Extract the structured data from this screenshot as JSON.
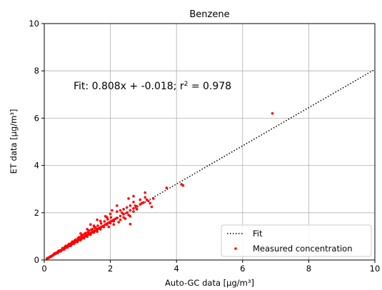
{
  "chart_data": {
    "type": "scatter",
    "title": "Benzene",
    "xlabel": "Auto-GC data [μg/m³]",
    "ylabel": "ET data [μg/m³]",
    "xlim": [
      0,
      10
    ],
    "ylim": [
      0,
      10
    ],
    "xticks": [
      0,
      2,
      4,
      6,
      8,
      10
    ],
    "yticks": [
      0,
      2,
      4,
      6,
      8,
      10
    ],
    "grid": true,
    "legend_position": "lower-right",
    "annotation": {
      "text": "Fit: 0.808x + -0.018; r² = 0.978",
      "prefix": "Fit: 0.808x + -0.018; r",
      "sup": "2",
      "suffix": " = 0.978"
    },
    "colors": {
      "points": "#ff0000",
      "fit": "#000000",
      "grid": "#b0b0b0"
    },
    "fit": {
      "name": "Fit",
      "slope": 0.808,
      "intercept": -0.018,
      "style": "dotted",
      "x_range": [
        0.05,
        10
      ]
    },
    "series": [
      {
        "name": "Measured concentration",
        "points": [
          [
            0.08,
            0.06
          ],
          [
            0.1,
            0.07
          ],
          [
            0.12,
            0.09
          ],
          [
            0.14,
            0.1
          ],
          [
            0.15,
            0.11
          ],
          [
            0.17,
            0.12
          ],
          [
            0.19,
            0.15
          ],
          [
            0.2,
            0.14
          ],
          [
            0.22,
            0.17
          ],
          [
            0.24,
            0.18
          ],
          [
            0.25,
            0.2
          ],
          [
            0.27,
            0.21
          ],
          [
            0.28,
            0.22
          ],
          [
            0.3,
            0.23
          ],
          [
            0.32,
            0.25
          ],
          [
            0.33,
            0.27
          ],
          [
            0.35,
            0.28
          ],
          [
            0.37,
            0.29
          ],
          [
            0.38,
            0.31
          ],
          [
            0.4,
            0.32
          ],
          [
            0.42,
            0.33
          ],
          [
            0.43,
            0.35
          ],
          [
            0.45,
            0.36
          ],
          [
            0.47,
            0.38
          ],
          [
            0.48,
            0.39
          ],
          [
            0.5,
            0.4
          ],
          [
            0.52,
            0.41
          ],
          [
            0.53,
            0.43
          ],
          [
            0.55,
            0.44
          ],
          [
            0.57,
            0.46
          ],
          [
            0.58,
            0.47
          ],
          [
            0.6,
            0.48
          ],
          [
            0.62,
            0.5
          ],
          [
            0.63,
            0.51
          ],
          [
            0.65,
            0.52
          ],
          [
            0.67,
            0.54
          ],
          [
            0.68,
            0.55
          ],
          [
            0.7,
            0.57
          ],
          [
            0.72,
            0.58
          ],
          [
            0.73,
            0.59
          ],
          [
            0.75,
            0.6
          ],
          [
            0.77,
            0.62
          ],
          [
            0.78,
            0.63
          ],
          [
            0.8,
            0.65
          ],
          [
            0.82,
            0.66
          ],
          [
            0.83,
            0.67
          ],
          [
            0.85,
            0.69
          ],
          [
            0.87,
            0.7
          ],
          [
            0.88,
            0.71
          ],
          [
            0.9,
            0.73
          ],
          [
            0.92,
            0.74
          ],
          [
            0.93,
            0.76
          ],
          [
            0.95,
            0.77
          ],
          [
            0.97,
            0.78
          ],
          [
            0.98,
            0.8
          ],
          [
            1.0,
            0.81
          ],
          [
            1.02,
            0.82
          ],
          [
            1.03,
            0.84
          ],
          [
            1.05,
            0.85
          ],
          [
            1.07,
            0.86
          ],
          [
            1.08,
            0.88
          ],
          [
            1.1,
            0.89
          ],
          [
            1.12,
            0.9
          ],
          [
            1.13,
            0.92
          ],
          [
            1.15,
            0.93
          ],
          [
            1.17,
            0.95
          ],
          [
            1.18,
            0.96
          ],
          [
            1.2,
            0.97
          ],
          [
            1.22,
            0.99
          ],
          [
            1.23,
            1.0
          ],
          [
            1.25,
            1.01
          ],
          [
            1.27,
            1.03
          ],
          [
            1.28,
            1.04
          ],
          [
            1.3,
            1.05
          ],
          [
            1.32,
            1.07
          ],
          [
            1.33,
            1.08
          ],
          [
            1.35,
            1.1
          ],
          [
            1.37,
            1.11
          ],
          [
            1.38,
            1.12
          ],
          [
            1.4,
            1.13
          ],
          [
            1.42,
            1.15
          ],
          [
            1.43,
            1.16
          ],
          [
            1.45,
            1.17
          ],
          [
            1.47,
            1.19
          ],
          [
            1.5,
            1.21
          ],
          [
            1.52,
            1.23
          ],
          [
            1.55,
            1.25
          ],
          [
            1.58,
            1.27
          ],
          [
            1.6,
            1.3
          ],
          [
            1.62,
            1.31
          ],
          [
            1.65,
            1.33
          ],
          [
            1.68,
            1.36
          ],
          [
            1.7,
            1.37
          ],
          [
            1.73,
            1.4
          ],
          [
            1.77,
            1.43
          ],
          [
            1.8,
            1.45
          ],
          [
            1.85,
            1.5
          ],
          [
            1.9,
            1.54
          ],
          [
            1.95,
            1.58
          ],
          [
            2.0,
            1.62
          ],
          [
            2.05,
            1.66
          ],
          [
            2.1,
            1.7
          ],
          [
            2.15,
            1.74
          ],
          [
            2.2,
            1.78
          ],
          [
            2.3,
            1.86
          ],
          [
            2.4,
            1.94
          ],
          [
            2.5,
            2.0
          ],
          [
            2.6,
            2.1
          ],
          [
            2.7,
            2.18
          ],
          [
            2.8,
            2.27
          ],
          [
            2.9,
            2.35
          ],
          [
            3.0,
            2.43
          ],
          [
            0.4,
            0.29
          ],
          [
            0.5,
            0.37
          ],
          [
            0.6,
            0.45
          ],
          [
            0.7,
            0.53
          ],
          [
            0.8,
            0.6
          ],
          [
            0.9,
            0.69
          ],
          [
            1.0,
            0.76
          ],
          [
            1.1,
            0.84
          ],
          [
            1.2,
            0.92
          ],
          [
            1.3,
            0.99
          ],
          [
            1.4,
            1.07
          ],
          [
            1.5,
            1.16
          ],
          [
            0.45,
            0.4
          ],
          [
            0.55,
            0.5
          ],
          [
            0.65,
            0.6
          ],
          [
            0.75,
            0.68
          ],
          [
            0.85,
            0.78
          ],
          [
            0.95,
            0.86
          ],
          [
            1.05,
            0.96
          ],
          [
            1.15,
            1.06
          ],
          [
            1.25,
            1.14
          ],
          [
            1.35,
            1.24
          ],
          [
            1.45,
            1.3
          ],
          [
            1.55,
            1.38
          ],
          [
            0.3,
            0.27
          ],
          [
            0.35,
            0.3
          ],
          [
            0.42,
            0.37
          ],
          [
            0.62,
            0.55
          ],
          [
            0.72,
            0.63
          ],
          [
            0.82,
            0.72
          ],
          [
            0.92,
            0.82
          ],
          [
            1.02,
            0.92
          ],
          [
            1.12,
            1.01
          ],
          [
            1.22,
            1.1
          ],
          [
            1.32,
            1.18
          ],
          [
            1.42,
            1.28
          ],
          [
            1.52,
            1.36
          ],
          [
            1.62,
            1.45
          ],
          [
            1.72,
            1.55
          ],
          [
            1.82,
            1.63
          ],
          [
            1.92,
            1.72
          ],
          [
            2.02,
            1.8
          ],
          [
            1.6,
            1.2
          ],
          [
            1.7,
            1.3
          ],
          [
            1.8,
            1.4
          ],
          [
            1.9,
            1.5
          ],
          [
            2.0,
            1.56
          ],
          [
            2.1,
            1.64
          ],
          [
            1.7,
            1.65
          ],
          [
            1.9,
            1.8
          ],
          [
            2.0,
            1.95
          ],
          [
            2.2,
            2.05
          ],
          [
            2.3,
            2.1
          ],
          [
            2.4,
            2.15
          ],
          [
            2.5,
            2.22
          ],
          [
            2.6,
            2.3
          ],
          [
            2.7,
            2.45
          ],
          [
            2.9,
            2.55
          ],
          [
            3.05,
            2.65
          ],
          [
            3.15,
            2.5
          ],
          [
            3.2,
            2.4
          ],
          [
            2.3,
            1.7
          ],
          [
            2.4,
            1.8
          ],
          [
            2.55,
            1.9
          ],
          [
            2.7,
            2.05
          ],
          [
            2.8,
            2.15
          ],
          [
            1.4,
            1.5
          ],
          [
            1.6,
            1.7
          ],
          [
            2.2,
            2.3
          ],
          [
            2.35,
            2.0
          ],
          [
            2.55,
            2.6
          ],
          [
            2.7,
            2.7
          ],
          [
            1.95,
            1.4
          ],
          [
            2.1,
            1.5
          ],
          [
            2.25,
            1.6
          ],
          [
            2.45,
            1.75
          ],
          [
            2.6,
            1.85
          ],
          [
            1.1,
            1.12
          ],
          [
            1.3,
            1.3
          ],
          [
            1.5,
            1.45
          ],
          [
            1.85,
            1.85
          ],
          [
            2.05,
            2.1
          ],
          [
            2.75,
            2.3
          ],
          [
            2.95,
            2.4
          ],
          [
            3.1,
            2.55
          ],
          [
            3.25,
            2.25
          ],
          [
            3.3,
            2.6
          ],
          [
            2.6,
            1.52
          ],
          [
            3.05,
            2.85
          ],
          [
            3.7,
            3.05
          ],
          [
            4.15,
            3.2
          ],
          [
            4.2,
            3.15
          ],
          [
            6.9,
            6.2
          ]
        ]
      }
    ]
  }
}
